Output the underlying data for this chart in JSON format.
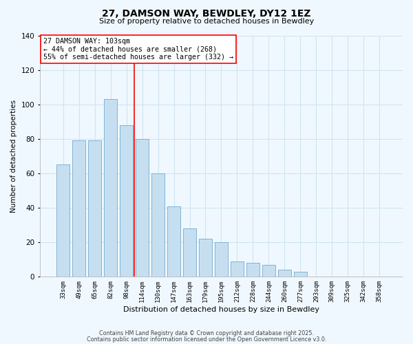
{
  "title": "27, DAMSON WAY, BEWDLEY, DY12 1EZ",
  "subtitle": "Size of property relative to detached houses in Bewdley",
  "xlabel": "Distribution of detached houses by size in Bewdley",
  "ylabel": "Number of detached properties",
  "bar_labels": [
    "33sqm",
    "49sqm",
    "65sqm",
    "82sqm",
    "98sqm",
    "114sqm",
    "130sqm",
    "147sqm",
    "163sqm",
    "179sqm",
    "195sqm",
    "212sqm",
    "228sqm",
    "244sqm",
    "260sqm",
    "277sqm",
    "293sqm",
    "309sqm",
    "325sqm",
    "342sqm",
    "358sqm"
  ],
  "bar_values": [
    65,
    79,
    79,
    103,
    88,
    80,
    60,
    41,
    28,
    22,
    20,
    9,
    8,
    7,
    4,
    3,
    0,
    0,
    0,
    0,
    0
  ],
  "bar_color": "#c6dff0",
  "bar_edge_color": "#7fb3d3",
  "vline_x": 4.5,
  "vline_color": "red",
  "annotation_title": "27 DAMSON WAY: 103sqm",
  "annotation_line1": "← 44% of detached houses are smaller (268)",
  "annotation_line2": "55% of semi-detached houses are larger (332) →",
  "box_color": "white",
  "box_edge_color": "red",
  "ylim": [
    0,
    140
  ],
  "yticks": [
    0,
    20,
    40,
    60,
    80,
    100,
    120,
    140
  ],
  "footer_line1": "Contains HM Land Registry data © Crown copyright and database right 2025.",
  "footer_line2": "Contains public sector information licensed under the Open Government Licence v3.0.",
  "background_color": "#f0f8ff",
  "grid_color": "#d0e4f0"
}
